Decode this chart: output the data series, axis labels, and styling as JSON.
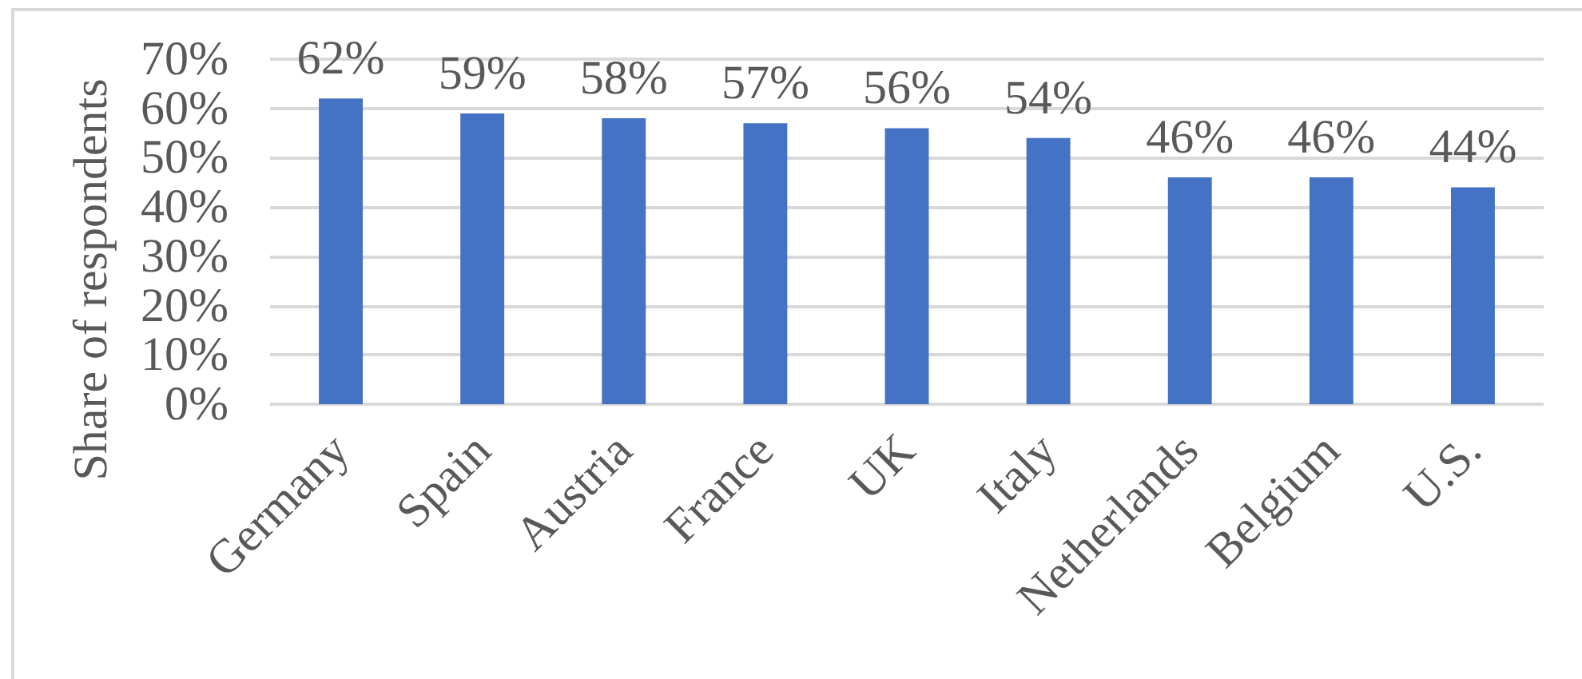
{
  "chart_data": {
    "type": "bar",
    "ylabel": "Share of respondents",
    "categories": [
      "Germany",
      "Spain",
      "Austria",
      "France",
      "UK",
      "Italy",
      "Netherlands",
      "Belgium",
      "U.S."
    ],
    "values": [
      62,
      59,
      58,
      57,
      56,
      54,
      46,
      46,
      44
    ],
    "color": "#4472c4",
    "value_labels": [
      "62%",
      "59%",
      "58%",
      "57%",
      "56%",
      "54%",
      "46%",
      "46%",
      "44%"
    ],
    "ylim": [
      0,
      70
    ],
    "yticks": [
      {
        "value": 0,
        "label": "0%"
      },
      {
        "value": 10,
        "label": "10%"
      },
      {
        "value": 20,
        "label": "20%"
      },
      {
        "value": 30,
        "label": "30%"
      },
      {
        "value": 40,
        "label": "40%"
      },
      {
        "value": 50,
        "label": "50%"
      },
      {
        "value": 60,
        "label": "60%"
      },
      {
        "value": 70,
        "label": "70%"
      }
    ],
    "grid": "y"
  }
}
